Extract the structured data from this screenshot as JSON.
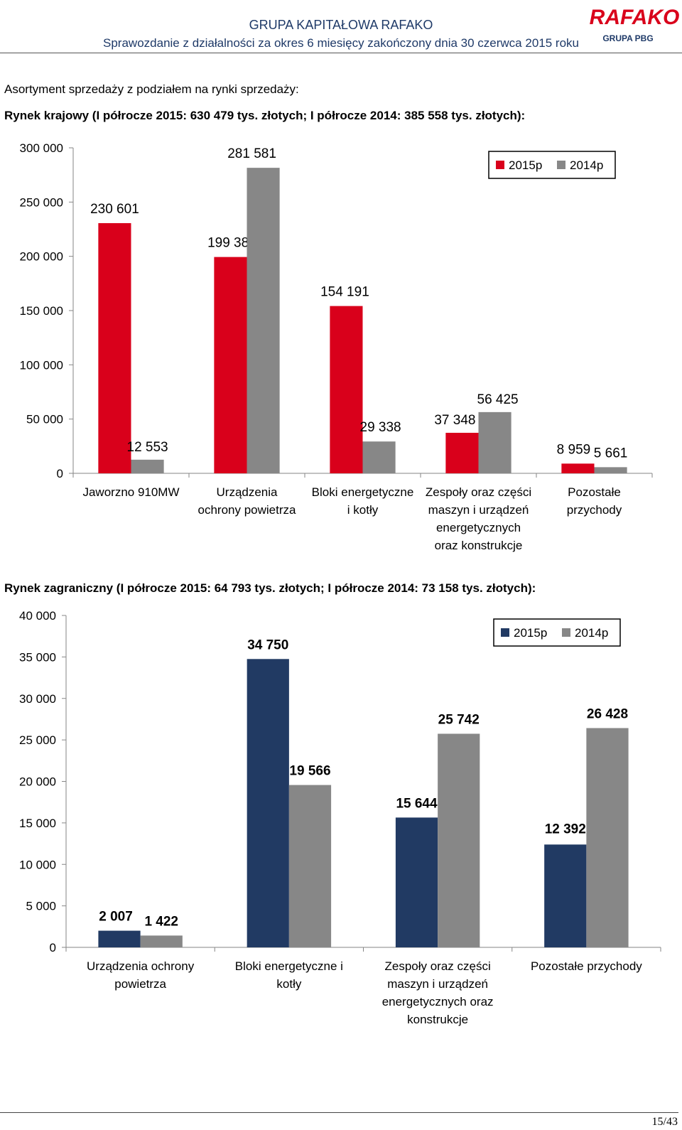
{
  "header": {
    "title": "GRUPA KAPITAŁOWA RAFAKO",
    "subtitle": "Sprawozdanie z działalności za okres 6 miesięcy zakończony dnia 30 czerwca 2015 roku",
    "logo_text": "RAFAKO",
    "logo_sub": "GRUPA PBG"
  },
  "intro_text": "Asortyment sprzedaży z podziałem na rynki sprzedaży:",
  "section1_title": "Rynek krajowy (I półrocze 2015: 630 479 tys. złotych; I półrocze 2014: 385 558 tys. złotych):",
  "section2_title": "Rynek zagraniczny (I półrocze 2015: 64 793 tys. złotych; I półrocze 2014: 73 158 tys. złotych):",
  "chart_data": [
    {
      "type": "bar",
      "categories": [
        [
          "Jaworzno 910MW"
        ],
        [
          "Urządzenia",
          "ochrony powietrza"
        ],
        [
          "Bloki energetyczne",
          "i kotły"
        ],
        [
          "Zespoły oraz części",
          "maszyn i urządzeń",
          "energetycznych",
          "oraz konstrukcje"
        ],
        [
          "Pozostałe",
          "przychody"
        ]
      ],
      "series": [
        {
          "name": "2015p",
          "color": "#d9001b",
          "values": [
            230601,
            199380,
            154191,
            37348,
            8959
          ],
          "labels": [
            "230 601",
            "199 380",
            "154 191",
            "37 348",
            "8 959"
          ]
        },
        {
          "name": "2014p",
          "color": "#878787",
          "values": [
            12553,
            281581,
            29338,
            56425,
            5661
          ],
          "labels": [
            "12 553",
            "281 581",
            "29 338",
            "56 425",
            "5 661"
          ]
        }
      ],
      "ylim": [
        0,
        300000
      ],
      "yticks": [
        "0",
        "50 000",
        "100 000",
        "150 000",
        "200 000",
        "250 000",
        "300 000"
      ],
      "grid": false,
      "legend": "top-right"
    },
    {
      "type": "bar",
      "categories": [
        [
          "Urządzenia ochrony",
          "powietrza"
        ],
        [
          "Bloki energetyczne i",
          "kotły"
        ],
        [
          "Zespoły oraz części",
          "maszyn i urządzeń",
          "energetycznych oraz",
          "konstrukcje"
        ],
        [
          "Pozostałe przychody"
        ]
      ],
      "series": [
        {
          "name": "2015p",
          "color": "#213a63",
          "values": [
            2007,
            34750,
            15644,
            12392
          ],
          "labels": [
            "2 007",
            "34 750",
            "15 644",
            "12 392"
          ]
        },
        {
          "name": "2014p",
          "color": "#878787",
          "values": [
            1422,
            19566,
            25742,
            26428
          ],
          "labels": [
            "1 422",
            "19 566",
            "25 742",
            "26 428"
          ]
        }
      ],
      "ylim": [
        0,
        40000
      ],
      "yticks": [
        "0",
        "5 000",
        "10 000",
        "15 000",
        "20 000",
        "25 000",
        "30 000",
        "35 000",
        "40 000"
      ],
      "grid": false,
      "legend": "top-right"
    }
  ],
  "page_number": "15/43"
}
